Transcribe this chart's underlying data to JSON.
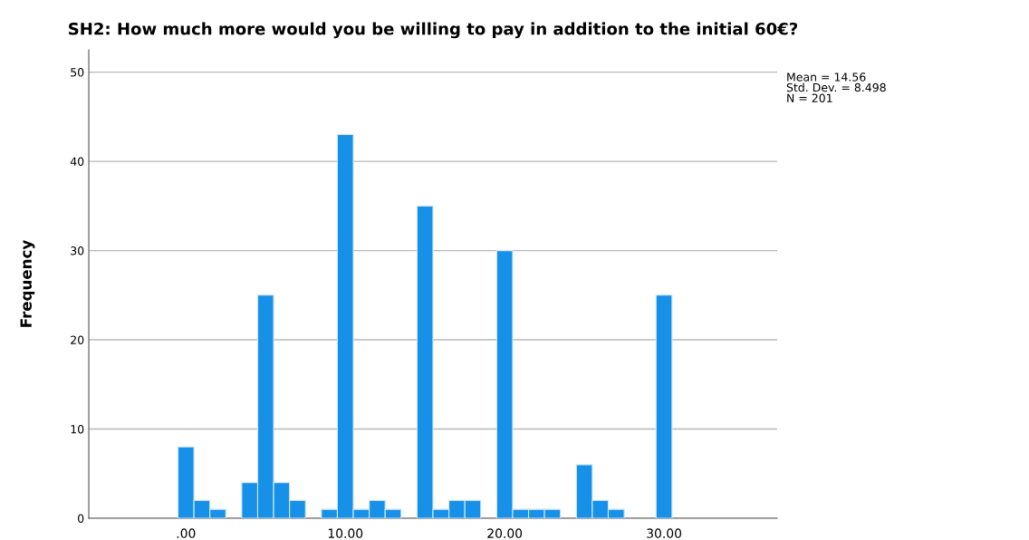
{
  "chart_data": {
    "type": "histogram",
    "title": "SH2: How much more would you be willing to pay in addition to the initial 60€?",
    "ylabel": "Frequency",
    "bins": [
      -0.5,
      0.5,
      1.5,
      2.5,
      3.5,
      4.5,
      5.5,
      6.5,
      7.5,
      8.5,
      9.5,
      10.5,
      11.5,
      12.5,
      13.5,
      14.5,
      15.5,
      16.5,
      17.5,
      18.5,
      19.5,
      20.5,
      21.5,
      22.5,
      23.5,
      24.5,
      25.5,
      26.5,
      27.5,
      28.5,
      29.5,
      30.5
    ],
    "values": [
      8,
      2,
      1,
      0,
      4,
      25,
      4,
      2,
      0,
      1,
      43,
      1,
      2,
      1,
      0,
      35,
      1,
      2,
      2,
      0,
      30,
      1,
      1,
      1,
      0,
      6,
      2,
      1,
      0,
      0,
      25
    ],
    "color": "#1791e8",
    "xlim": [
      -6.1,
      37.1
    ],
    "xticks": [
      {
        "value": 0,
        "label": ".00"
      },
      {
        "value": 10,
        "label": "10.00"
      },
      {
        "value": 20,
        "label": "20.00"
      },
      {
        "value": 30,
        "label": "30.00"
      }
    ],
    "ylim": [
      0,
      52.5
    ],
    "yticks": [
      0,
      10,
      20,
      30,
      40,
      50
    ],
    "grid": "y",
    "annotations": [
      "Mean = 14.56\nStd. Dev. = 8.498\nN = 201"
    ]
  }
}
